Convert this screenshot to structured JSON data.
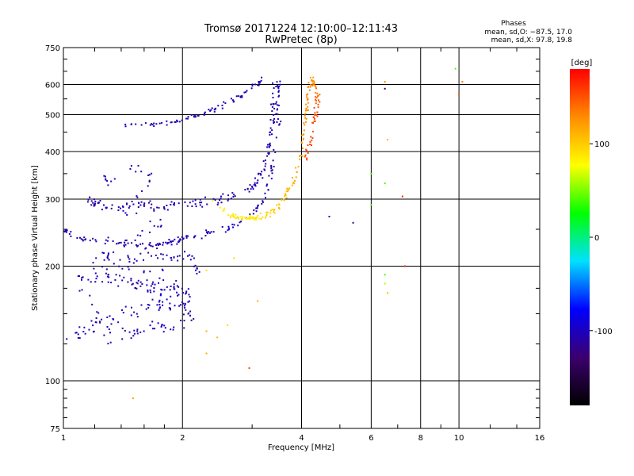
{
  "chart_data": {
    "type": "scatter",
    "title": "Tromsø 20171224 12:10:00–12:11:43",
    "subtitle": "RwPretec (8p)",
    "xlabel": "Frequency [MHz]",
    "ylabel": "Stationary phase Virtual Height [km]",
    "x_scale": "log",
    "y_scale": "log",
    "xlim": [
      1,
      16
    ],
    "ylim": [
      75,
      750
    ],
    "x_ticks": [
      1,
      2,
      4,
      6,
      8,
      10,
      16
    ],
    "y_ticks": [
      75,
      100,
      200,
      300,
      400,
      500,
      600,
      750
    ],
    "grid": true,
    "phases_box": {
      "title": "Phases",
      "line_o": "mean, sd,O: −87.5, 17.0",
      "line_x": "mean, sd,X:  97.8, 19.8"
    },
    "colorbar": {
      "label": "[deg]",
      "range": [
        -180,
        180
      ],
      "ticks": [
        100,
        0,
        -100
      ],
      "colors": [
        "#000000",
        "#3c006e",
        "#0000ff",
        "#00e1ff",
        "#00ff00",
        "#ffff00",
        "#ff8c00",
        "#ff0000"
      ]
    },
    "traces": [
      {
        "name": "",
        "points": [
          [
            1.0,
            250,
            -110
          ],
          [
            1.02,
            245,
            -105
          ],
          [
            1.05,
            242,
            -100
          ],
          [
            1.1,
            238,
            -110
          ],
          [
            1.2,
            233,
            -105
          ],
          [
            1.3,
            232,
            -100
          ],
          [
            1.4,
            229,
            -110
          ],
          [
            1.5,
            228,
            -105
          ],
          [
            1.6,
            228,
            -100
          ],
          [
            1.7,
            229,
            -110
          ],
          [
            1.8,
            231,
            -105
          ],
          [
            1.9,
            233,
            -100
          ],
          [
            2.0,
            236,
            -110
          ],
          [
            2.2,
            240,
            -105
          ],
          [
            2.4,
            245,
            -100
          ],
          [
            2.6,
            252,
            -95
          ],
          [
            2.8,
            262,
            -100
          ],
          [
            3.0,
            275,
            -105
          ],
          [
            3.1,
            285,
            -110
          ],
          [
            3.2,
            298,
            -105
          ],
          [
            3.3,
            320,
            -100
          ],
          [
            3.35,
            345,
            -110
          ],
          [
            3.4,
            380,
            -105
          ],
          [
            3.45,
            430,
            -100
          ],
          [
            3.5,
            480,
            -110
          ],
          [
            3.5,
            530,
            -105
          ],
          [
            3.5,
            580,
            -100
          ],
          [
            3.5,
            630,
            -110
          ]
        ],
        "spread": 0.035,
        "count": 160
      },
      {
        "name": "",
        "points": [
          [
            1.15,
            300,
            -110
          ],
          [
            1.25,
            290,
            -105
          ],
          [
            1.4,
            287,
            -100
          ],
          [
            1.6,
            287,
            -110
          ],
          [
            1.8,
            288,
            -105
          ],
          [
            2.0,
            290,
            -100
          ],
          [
            2.2,
            292,
            -110
          ],
          [
            2.4,
            296,
            -105
          ],
          [
            2.6,
            302,
            -100
          ],
          [
            2.8,
            310,
            -110
          ],
          [
            3.0,
            322,
            -105
          ],
          [
            3.1,
            335,
            -100
          ],
          [
            3.2,
            360,
            -110
          ],
          [
            3.3,
            400,
            -105
          ],
          [
            3.35,
            450,
            -100
          ],
          [
            3.4,
            500,
            -110
          ],
          [
            3.4,
            560,
            -105
          ],
          [
            3.4,
            610,
            -100
          ]
        ],
        "spread": 0.04,
        "count": 160
      },
      {
        "name": "",
        "points": [
          [
            1.4,
            470,
            -105
          ],
          [
            1.6,
            470,
            -110
          ],
          [
            1.8,
            475,
            -100
          ],
          [
            2.0,
            485,
            -105
          ],
          [
            2.2,
            500,
            -110
          ],
          [
            2.4,
            515,
            -100
          ],
          [
            2.6,
            535,
            -105
          ],
          [
            2.8,
            560,
            -110
          ],
          [
            3.0,
            590,
            -100
          ],
          [
            3.2,
            620,
            -105
          ]
        ],
        "spread": 0.025,
        "count": 80
      },
      {
        "name": "",
        "points": [
          [
            2.4,
            295,
            80
          ],
          [
            2.6,
            275,
            85
          ],
          [
            2.8,
            268,
            90
          ],
          [
            3.0,
            266,
            85
          ],
          [
            3.2,
            270,
            95
          ],
          [
            3.4,
            280,
            100
          ],
          [
            3.6,
            300,
            105
          ],
          [
            3.8,
            330,
            110
          ],
          [
            3.9,
            360,
            115
          ],
          [
            4.0,
            400,
            120
          ],
          [
            4.05,
            450,
            120
          ],
          [
            4.1,
            500,
            125
          ],
          [
            4.15,
            560,
            130
          ],
          [
            4.2,
            610,
            125
          ]
        ],
        "spread": 0.03,
        "count": 130
      },
      {
        "name": "",
        "points": [
          [
            4.1,
            380,
            150
          ],
          [
            4.2,
            420,
            155
          ],
          [
            4.3,
            470,
            160
          ],
          [
            4.35,
            520,
            150
          ],
          [
            4.4,
            560,
            140
          ],
          [
            4.3,
            600,
            130
          ],
          [
            4.2,
            630,
            120
          ]
        ],
        "spread": 0.035,
        "count": 60
      },
      {
        "name": "",
        "points": [
          [
            1.0,
            130,
            -100
          ],
          [
            1.2,
            140,
            -110
          ],
          [
            1.4,
            150,
            -100
          ],
          [
            1.6,
            155,
            -105
          ],
          [
            1.8,
            160,
            -95
          ],
          [
            2.0,
            160,
            -100
          ],
          [
            2.1,
            150,
            -110
          ],
          [
            1.9,
            140,
            -105
          ],
          [
            1.6,
            135,
            -100
          ],
          [
            1.3,
            130,
            -110
          ],
          [
            1.1,
            185,
            -105
          ],
          [
            1.3,
            185,
            -100
          ],
          [
            1.5,
            180,
            -110
          ],
          [
            1.7,
            175,
            -95
          ],
          [
            1.9,
            175,
            -100
          ],
          [
            2.1,
            170,
            -105
          ],
          [
            1.2,
            200,
            -110
          ],
          [
            1.5,
            205,
            -100
          ],
          [
            1.8,
            195,
            -105
          ]
        ],
        "spread": 0.07,
        "count": 220
      },
      {
        "name": "",
        "points": [
          [
            1.2,
            380,
            -110
          ],
          [
            1.3,
            330,
            -100
          ],
          [
            1.5,
            360,
            -105
          ],
          [
            1.7,
            345,
            -110
          ],
          [
            1.4,
            270,
            -100
          ],
          [
            1.8,
            260,
            -105
          ],
          [
            1.2,
            210,
            -100
          ],
          [
            1.6,
            215,
            -110
          ],
          [
            1.9,
            210,
            -105
          ],
          [
            2.1,
            215,
            -100
          ],
          [
            2.2,
            190,
            -110
          ]
        ],
        "spread": 0.05,
        "count": 90
      }
    ],
    "isolated_points": [
      [
        6.5,
        610,
        130
      ],
      [
        6.5,
        585,
        -140
      ],
      [
        6.6,
        430,
        110
      ],
      [
        6.5,
        330,
        40
      ],
      [
        6.0,
        350,
        40
      ],
      [
        6.0,
        290,
        40
      ],
      [
        7.2,
        305,
        170
      ],
      [
        7.3,
        200,
        170
      ],
      [
        6.5,
        190,
        40
      ],
      [
        6.5,
        180,
        60
      ],
      [
        6.6,
        170,
        110
      ],
      [
        9.8,
        660,
        40
      ],
      [
        10.2,
        610,
        140
      ],
      [
        10.0,
        565,
        150
      ],
      [
        5.4,
        260,
        -130
      ],
      [
        4.7,
        270,
        -100
      ],
      [
        2.95,
        108,
        150
      ],
      [
        3.1,
        162,
        115
      ],
      [
        2.3,
        135,
        115
      ],
      [
        2.45,
        130,
        110
      ],
      [
        2.3,
        118,
        115
      ],
      [
        1.5,
        90,
        120
      ],
      [
        2.6,
        140,
        95
      ],
      [
        2.7,
        210,
        95
      ],
      [
        2.3,
        195,
        90
      ]
    ]
  }
}
